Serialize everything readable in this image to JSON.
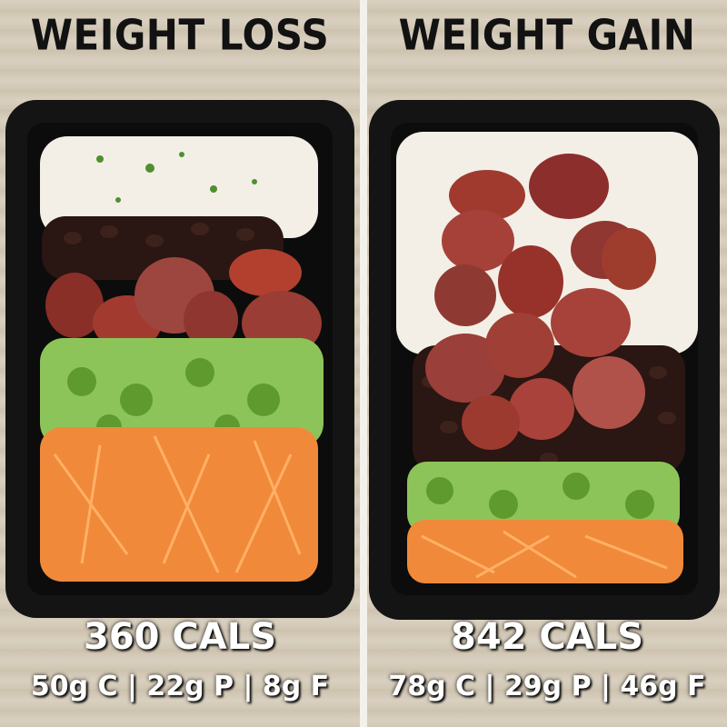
{
  "left": {
    "title": "WEIGHT LOSS",
    "calories": "360 CALS",
    "macros": "50g C | 22g P | 8g F"
  },
  "right": {
    "title": "WEIGHT GAIN",
    "calories": "842 CALS",
    "macros": "78g C | 29g P | 46g F"
  },
  "colors": {
    "container": "#141414",
    "rice": "#f3efe6",
    "beans": "#2a1612",
    "sausage": "#9a3a32",
    "broccoli": "#8dc45a",
    "carrot": "#f08a3a"
  }
}
